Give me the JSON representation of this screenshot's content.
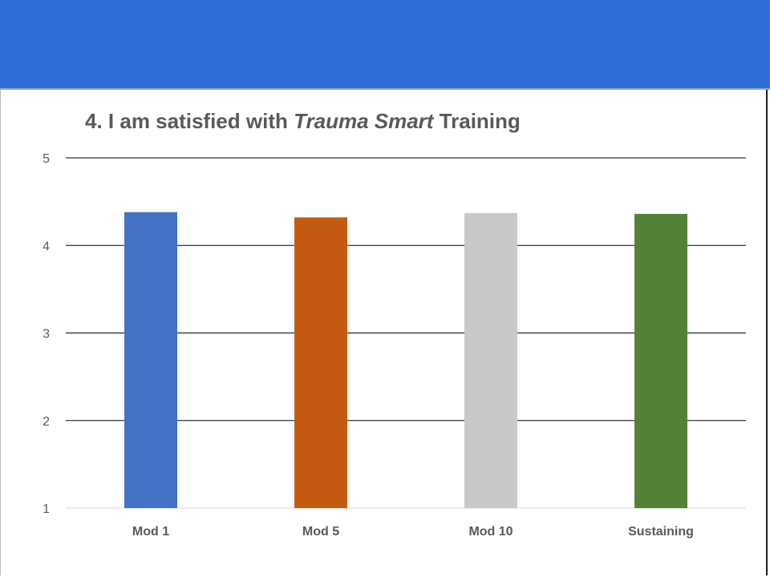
{
  "chart_data": {
    "type": "bar",
    "title": {
      "prefix": "4. I am satisfied with ",
      "emphasis": "Trauma Smart",
      "suffix": " Training"
    },
    "categories": [
      "Mod 1",
      "Mod 5",
      "Mod 10",
      "Sustaining"
    ],
    "values": [
      4.38,
      4.32,
      4.37,
      4.36
    ],
    "colors": [
      "#4472c4",
      "#c55a11",
      "#c9c9c9",
      "#538135"
    ],
    "ylim": [
      1,
      5
    ],
    "yticks": [
      1,
      2,
      3,
      4,
      5
    ],
    "grid": true,
    "xlabel": "",
    "ylabel": ""
  },
  "banner": {
    "color": "#2f6ed6"
  }
}
